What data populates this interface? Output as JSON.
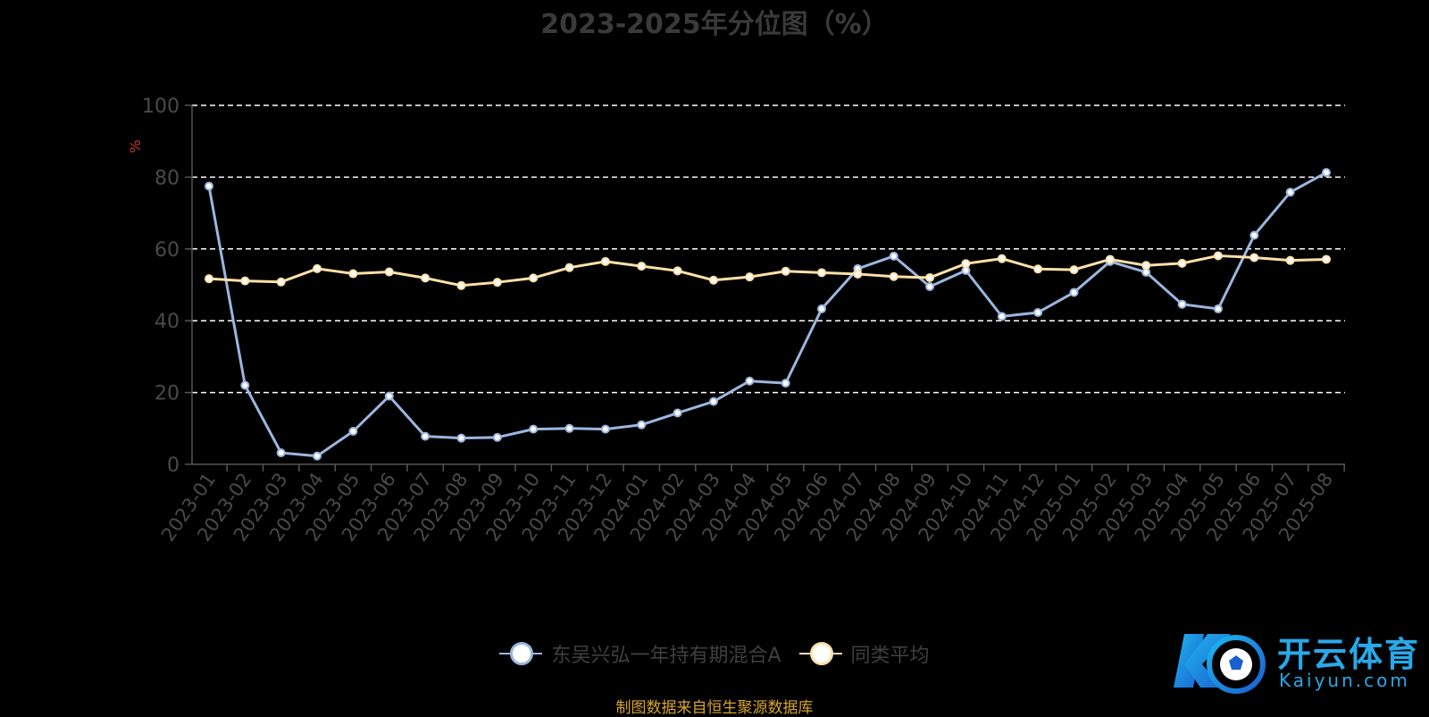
{
  "chart_data": {
    "type": "line",
    "title": "2023-2025年分位图（%）",
    "ylabel": "%",
    "ylim": [
      0,
      100
    ],
    "yticks": [
      0,
      20,
      40,
      60,
      80,
      100
    ],
    "grid": true,
    "legend_position": "bottom",
    "categories": [
      "2023-01",
      "2023-02",
      "2023-03",
      "2023-04",
      "2023-05",
      "2023-06",
      "2023-07",
      "2023-08",
      "2023-09",
      "2023-10",
      "2023-11",
      "2023-12",
      "2024-01",
      "2024-02",
      "2024-03",
      "2024-04",
      "2024-05",
      "2024-06",
      "2024-07",
      "2024-08",
      "2024-09",
      "2024-10",
      "2024-11",
      "2024-12",
      "2025-01",
      "2025-02",
      "2025-03",
      "2025-04",
      "2025-05",
      "2025-06",
      "2025-07",
      "2025-08"
    ],
    "series": [
      {
        "name": "东吴兴弘一年持有期混合A",
        "color": "#9bb6de",
        "values": [
          77.5,
          22,
          3.2,
          2.3,
          9.2,
          19,
          7.8,
          7.3,
          7.5,
          9.8,
          10,
          9.8,
          11,
          14.3,
          17.5,
          23.2,
          22.6,
          43.3,
          54.5,
          58,
          49.5,
          54,
          41.2,
          42.3,
          47.9,
          56.5,
          53.5,
          44.6,
          43.3,
          63.8,
          75.8,
          81.3
        ]
      },
      {
        "name": "同类平均",
        "color": "#ffe0a8",
        "values": [
          51.7,
          51.1,
          50.8,
          54.5,
          53.1,
          53.6,
          51.9,
          49.8,
          50.7,
          51.9,
          54.8,
          56.5,
          55.2,
          53.9,
          51.3,
          52.2,
          53.8,
          53.4,
          53,
          52.3,
          52,
          55.9,
          57.3,
          54.4,
          54.2,
          57.1,
          55.4,
          56,
          58.1,
          57.6,
          56.8,
          57.1
        ]
      }
    ]
  },
  "source_note": "制图数据来自恒生聚源数据库",
  "watermark": {
    "logo_icon": "kaiyun-k-football-logo",
    "name_cn": "开云体育",
    "name_en": "Kaiyun.com"
  },
  "colors": {
    "background": "#000000",
    "axis": "#555555",
    "grid": "#ffffff",
    "tick_label": "#4a4a4a",
    "ylabel": "#c0392b"
  }
}
